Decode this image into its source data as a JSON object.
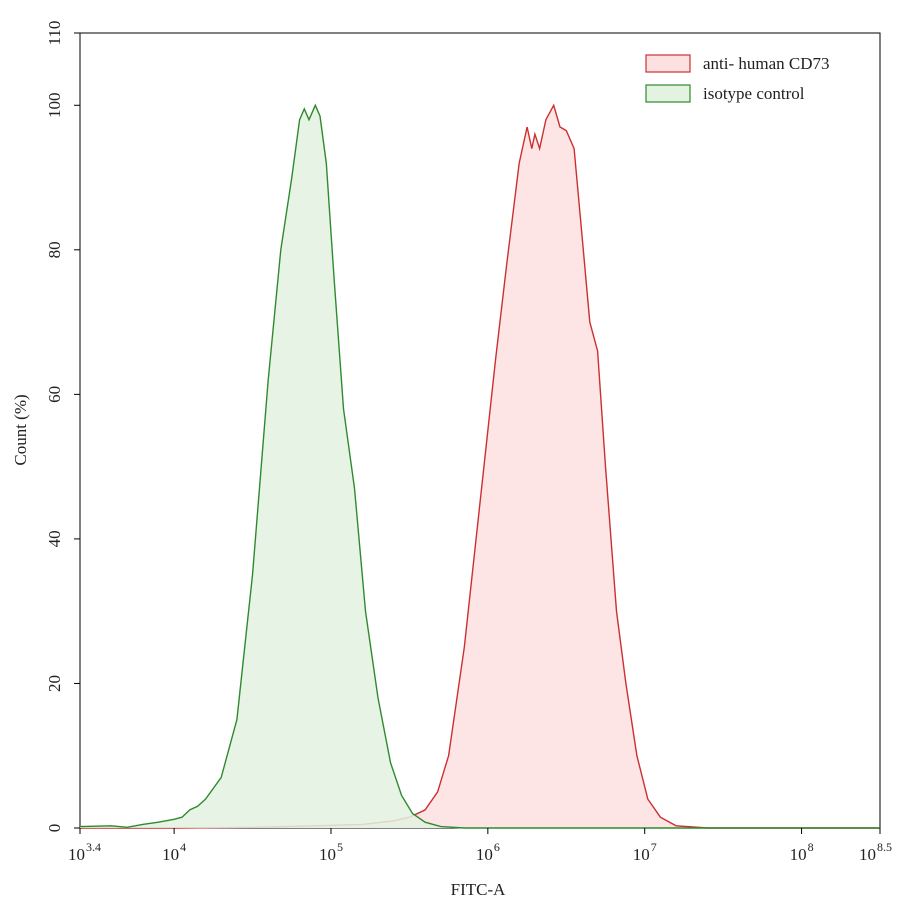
{
  "chart_data": {
    "type": "area",
    "title": "",
    "xlabel": "FITC-A",
    "ylabel": "Count  (%)",
    "x_scale": "log10",
    "xlim": [
      3.4,
      8.5
    ],
    "ylim": [
      0,
      110
    ],
    "grid": false,
    "legend_position": "top-right",
    "y_ticks": [
      {
        "value": 0,
        "label": "0"
      },
      {
        "value": 20,
        "label": "20"
      },
      {
        "value": 40,
        "label": "40"
      },
      {
        "value": 60,
        "label": "60"
      },
      {
        "value": 80,
        "label": "80"
      },
      {
        "value": 100,
        "label": "100"
      },
      {
        "value": 110,
        "label": "110"
      }
    ],
    "x_ticks": [
      {
        "value": 3.4,
        "base": "10",
        "exp": "3.4"
      },
      {
        "value": 4,
        "base": "10",
        "exp": "4"
      },
      {
        "value": 5,
        "base": "10",
        "exp": "5"
      },
      {
        "value": 6,
        "base": "10",
        "exp": "6"
      },
      {
        "value": 7,
        "base": "10",
        "exp": "7"
      },
      {
        "value": 8,
        "base": "10",
        "exp": "8"
      },
      {
        "value": 8.5,
        "base": "10",
        "exp": "8.5"
      }
    ],
    "series": [
      {
        "name": "anti- human CD73",
        "stroke": "#cc2f2f",
        "fill": "#fde0e0",
        "points": [
          [
            3.4,
            0.0
          ],
          [
            4.0,
            0.0
          ],
          [
            4.5,
            0.1
          ],
          [
            4.9,
            0.3
          ],
          [
            5.2,
            0.5
          ],
          [
            5.4,
            1.0
          ],
          [
            5.5,
            1.5
          ],
          [
            5.6,
            2.5
          ],
          [
            5.68,
            5.0
          ],
          [
            5.75,
            10.0
          ],
          [
            5.85,
            25.0
          ],
          [
            5.95,
            45.0
          ],
          [
            6.05,
            65.0
          ],
          [
            6.12,
            78.0
          ],
          [
            6.2,
            92.0
          ],
          [
            6.25,
            97.0
          ],
          [
            6.28,
            94.0
          ],
          [
            6.3,
            96.0
          ],
          [
            6.33,
            94.0
          ],
          [
            6.37,
            98.0
          ],
          [
            6.42,
            100.0
          ],
          [
            6.46,
            97.0
          ],
          [
            6.5,
            96.5
          ],
          [
            6.55,
            94.0
          ],
          [
            6.6,
            82.0
          ],
          [
            6.65,
            70.0
          ],
          [
            6.7,
            66.0
          ],
          [
            6.75,
            50.0
          ],
          [
            6.82,
            30.0
          ],
          [
            6.88,
            20.0
          ],
          [
            6.95,
            10.0
          ],
          [
            7.02,
            4.0
          ],
          [
            7.1,
            1.5
          ],
          [
            7.2,
            0.3
          ],
          [
            7.4,
            0.0
          ],
          [
            8.5,
            0.0
          ]
        ]
      },
      {
        "name": "isotype  control",
        "stroke": "#2f8a2f",
        "fill": "#e3f2e1",
        "points": [
          [
            3.4,
            0.2
          ],
          [
            3.6,
            0.3
          ],
          [
            3.7,
            0.1
          ],
          [
            3.8,
            0.5
          ],
          [
            3.9,
            0.8
          ],
          [
            4.0,
            1.2
          ],
          [
            4.05,
            1.5
          ],
          [
            4.1,
            2.5
          ],
          [
            4.15,
            3.0
          ],
          [
            4.2,
            4.0
          ],
          [
            4.3,
            7.0
          ],
          [
            4.4,
            15.0
          ],
          [
            4.5,
            35.0
          ],
          [
            4.6,
            62.0
          ],
          [
            4.68,
            80.0
          ],
          [
            4.75,
            90.0
          ],
          [
            4.8,
            98.0
          ],
          [
            4.83,
            99.5
          ],
          [
            4.86,
            98.0
          ],
          [
            4.9,
            100.0
          ],
          [
            4.93,
            98.5
          ],
          [
            4.97,
            92.0
          ],
          [
            5.02,
            76.0
          ],
          [
            5.08,
            58.0
          ],
          [
            5.15,
            47.0
          ],
          [
            5.22,
            30.0
          ],
          [
            5.3,
            18.0
          ],
          [
            5.38,
            9.0
          ],
          [
            5.45,
            4.5
          ],
          [
            5.52,
            2.0
          ],
          [
            5.6,
            0.8
          ],
          [
            5.7,
            0.2
          ],
          [
            5.85,
            0.0
          ],
          [
            8.5,
            0.0
          ]
        ]
      }
    ]
  }
}
